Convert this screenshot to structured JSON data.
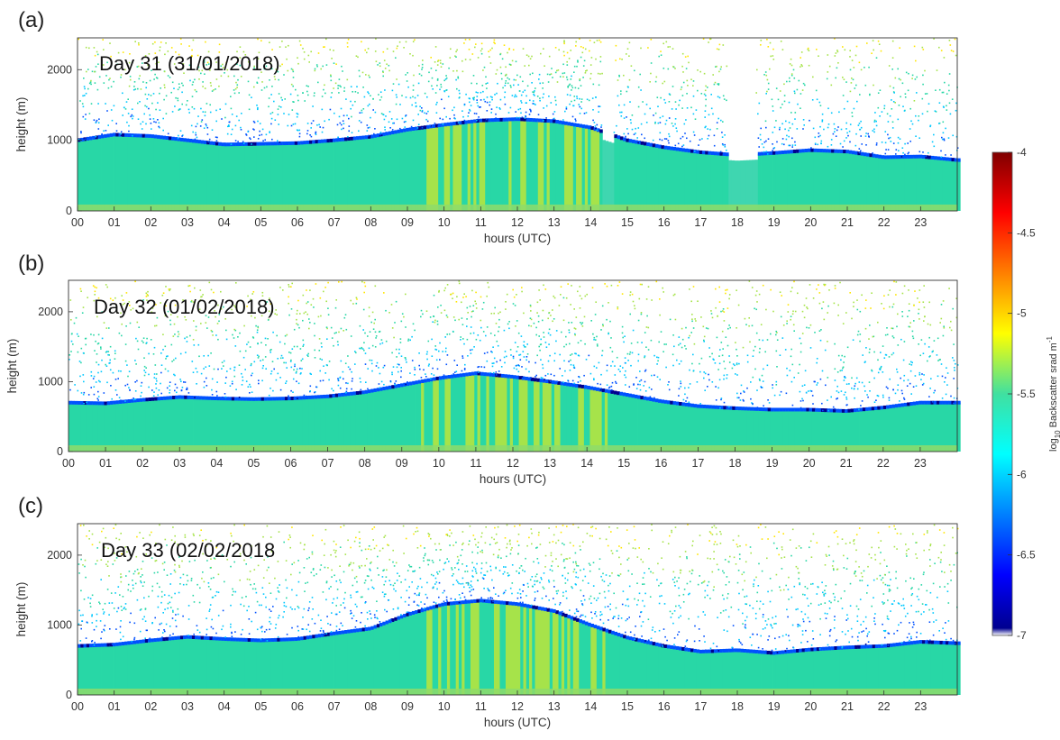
{
  "chart_data": [
    {
      "type": "heatmap",
      "panel_label": "(a)",
      "annotation": "Day 31 (31/01/2018)",
      "xlabel": "hours (UTC)",
      "ylabel": "height (m)",
      "xlim": [
        0,
        24
      ],
      "ylim": [
        0,
        2450
      ],
      "x_ticks": [
        "00",
        "01",
        "02",
        "03",
        "04",
        "05",
        "06",
        "07",
        "08",
        "09",
        "10",
        "11",
        "12",
        "13",
        "14",
        "15",
        "16",
        "17",
        "18",
        "19",
        "20",
        "21",
        "22",
        "23"
      ],
      "y_ticks": [
        0,
        1000,
        2000
      ],
      "layer_top_m": [
        [
          0,
          1000
        ],
        [
          1,
          1080
        ],
        [
          2,
          1060
        ],
        [
          3,
          1000
        ],
        [
          4,
          940
        ],
        [
          5,
          950
        ],
        [
          6,
          960
        ],
        [
          7,
          1000
        ],
        [
          8,
          1050
        ],
        [
          9,
          1150
        ],
        [
          10,
          1220
        ],
        [
          11,
          1280
        ],
        [
          12,
          1300
        ],
        [
          13,
          1270
        ],
        [
          14,
          1180
        ],
        [
          15,
          1000
        ],
        [
          16,
          900
        ],
        [
          17,
          830
        ],
        [
          18,
          790
        ],
        [
          19,
          820
        ],
        [
          20,
          860
        ],
        [
          21,
          840
        ],
        [
          22,
          760
        ],
        [
          23,
          770
        ],
        [
          24,
          720
        ]
      ],
      "data_gaps_hours": [
        [
          14.3,
          14.6
        ],
        [
          17.7,
          18.5
        ]
      ]
    },
    {
      "type": "heatmap",
      "panel_label": "(b)",
      "annotation": "Day 32 (01/02/2018)",
      "xlabel": "hours (UTC)",
      "ylabel": "height (m)",
      "xlim": [
        0,
        24
      ],
      "ylim": [
        0,
        2450
      ],
      "x_ticks": [
        "00",
        "01",
        "02",
        "03",
        "04",
        "05",
        "06",
        "07",
        "08",
        "09",
        "10",
        "11",
        "12",
        "13",
        "14",
        "15",
        "16",
        "17",
        "18",
        "19",
        "20",
        "21",
        "22",
        "23"
      ],
      "y_ticks": [
        0,
        1000,
        2000
      ],
      "layer_top_m": [
        [
          0,
          700
        ],
        [
          1,
          690
        ],
        [
          2,
          740
        ],
        [
          3,
          780
        ],
        [
          4,
          760
        ],
        [
          5,
          750
        ],
        [
          6,
          760
        ],
        [
          7,
          790
        ],
        [
          8,
          850
        ],
        [
          9,
          950
        ],
        [
          10,
          1050
        ],
        [
          11,
          1120
        ],
        [
          12,
          1070
        ],
        [
          13,
          1000
        ],
        [
          14,
          920
        ],
        [
          15,
          820
        ],
        [
          16,
          720
        ],
        [
          17,
          650
        ],
        [
          18,
          620
        ],
        [
          19,
          600
        ],
        [
          20,
          600
        ],
        [
          21,
          580
        ],
        [
          22,
          630
        ],
        [
          23,
          700
        ],
        [
          24,
          700
        ]
      ],
      "data_gaps_hours": []
    },
    {
      "type": "heatmap",
      "panel_label": "(c)",
      "annotation": "Day 33 (02/02/2018",
      "xlabel": "hours (UTC)",
      "ylabel": "height (m)",
      "xlim": [
        0,
        24
      ],
      "ylim": [
        0,
        2450
      ],
      "x_ticks": [
        "00",
        "01",
        "02",
        "03",
        "04",
        "05",
        "06",
        "07",
        "08",
        "09",
        "10",
        "11",
        "12",
        "13",
        "14",
        "15",
        "16",
        "17",
        "18",
        "19",
        "20",
        "21",
        "22",
        "23"
      ],
      "y_ticks": [
        0,
        1000,
        2000
      ],
      "layer_top_m": [
        [
          0,
          700
        ],
        [
          1,
          720
        ],
        [
          2,
          780
        ],
        [
          3,
          830
        ],
        [
          4,
          800
        ],
        [
          5,
          780
        ],
        [
          6,
          800
        ],
        [
          7,
          880
        ],
        [
          8,
          950
        ],
        [
          9,
          1150
        ],
        [
          10,
          1300
        ],
        [
          11,
          1350
        ],
        [
          12,
          1300
        ],
        [
          13,
          1200
        ],
        [
          14,
          1000
        ],
        [
          15,
          820
        ],
        [
          16,
          700
        ],
        [
          17,
          620
        ],
        [
          18,
          640
        ],
        [
          19,
          600
        ],
        [
          20,
          650
        ],
        [
          21,
          680
        ],
        [
          22,
          700
        ],
        [
          23,
          760
        ],
        [
          24,
          740
        ]
      ],
      "data_gaps_hours": []
    }
  ],
  "colorbar": {
    "range": [
      -7,
      -4
    ],
    "ticks": [
      "-4",
      "-4.5",
      "-5",
      "-5.5",
      "-6",
      "-6.5",
      "-7"
    ],
    "label_prefix": "log",
    "label_sub": "10",
    "label_main": " Backscatter srad",
    "label_tail": " m",
    "label_sup": "-1",
    "colors": [
      "#ffffff",
      "#00008f",
      "#0050ff",
      "#00c8ff",
      "#28d7a6",
      "#a6e34a",
      "#ffe600",
      "#ff7d00",
      "#e01a00",
      "#800000"
    ]
  }
}
